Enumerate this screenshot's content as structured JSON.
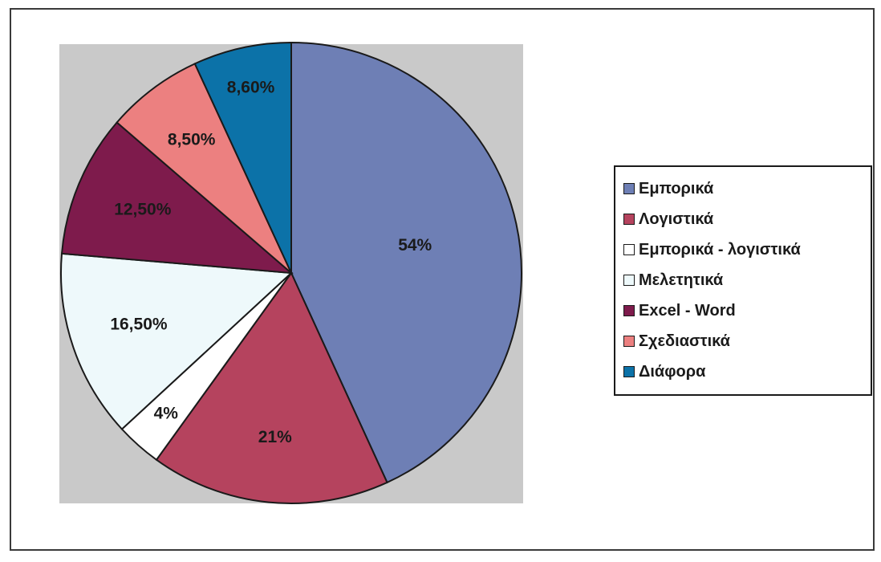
{
  "chart_data": {
    "type": "pie",
    "title": "",
    "legend_position": "right",
    "slices": [
      {
        "name": "Εμπορικά",
        "value": 54,
        "label": "54%",
        "color": "#6e7fb5"
      },
      {
        "name": "Λογιστικά",
        "value": 21,
        "label": "21%",
        "color": "#b5435e"
      },
      {
        "name": "Εμπορικά - λογιστικά",
        "value": 4,
        "label": "4%",
        "color": "#ffffff"
      },
      {
        "name": "Μελετητικά",
        "value": 16.5,
        "label": "16,50%",
        "color": "#eef9fb"
      },
      {
        "name": "Excel - Word",
        "value": 12.5,
        "label": "12,50%",
        "color": "#7e1b4c"
      },
      {
        "name": "Σχεδιαστικά",
        "value": 8.5,
        "label": "8,50%",
        "color": "#ec8080"
      },
      {
        "name": "Διάφορα",
        "value": 8.6,
        "label": "8,60%",
        "color": "#0c72a8"
      }
    ]
  }
}
